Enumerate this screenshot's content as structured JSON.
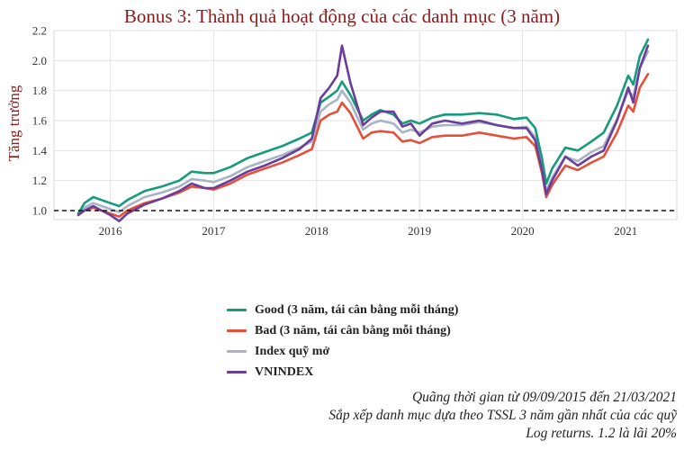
{
  "chart_data": {
    "type": "line",
    "title": "Bonus 3: Thành quả hoạt động của các danh mục (3 năm)",
    "xlabel": "",
    "ylabel": "Tăng trưởng",
    "x_ticks": [
      "2016",
      "2017",
      "2018",
      "2019",
      "2020",
      "2021"
    ],
    "x_tick_values": [
      "2016-01-01",
      "2017-01-01",
      "2018-01-01",
      "2019-01-01",
      "2020-01-01",
      "2021-01-01"
    ],
    "y_ticks": [
      "1.0",
      "1.2",
      "1.4",
      "1.6",
      "1.8",
      "2.0",
      "2.2"
    ],
    "xlim": [
      "2015-06-15",
      "2021-07-01"
    ],
    "ylim": [
      0.94,
      2.2
    ],
    "grid": true,
    "reference_line": {
      "y": 1.0,
      "style": "dashed"
    },
    "legend_position": "bottom",
    "series": [
      {
        "name": "Good (3 năm, tái cân bằng mỗi tháng)",
        "color": "#169b7c",
        "points": [
          [
            "2015-09-09",
            0.98
          ],
          [
            "2015-10-01",
            1.05
          ],
          [
            "2015-11-01",
            1.09
          ],
          [
            "2015-12-01",
            1.07
          ],
          [
            "2016-01-01",
            1.05
          ],
          [
            "2016-02-01",
            1.03
          ],
          [
            "2016-03-01",
            1.07
          ],
          [
            "2016-05-01",
            1.13
          ],
          [
            "2016-07-01",
            1.16
          ],
          [
            "2016-09-01",
            1.2
          ],
          [
            "2016-10-15",
            1.26
          ],
          [
            "2016-12-01",
            1.25
          ],
          [
            "2017-01-01",
            1.25
          ],
          [
            "2017-03-01",
            1.29
          ],
          [
            "2017-05-01",
            1.35
          ],
          [
            "2017-07-01",
            1.39
          ],
          [
            "2017-09-01",
            1.43
          ],
          [
            "2017-11-01",
            1.48
          ],
          [
            "2017-12-15",
            1.52
          ],
          [
            "2018-01-15",
            1.72
          ],
          [
            "2018-02-15",
            1.76
          ],
          [
            "2018-03-15",
            1.8
          ],
          [
            "2018-04-01",
            1.86
          ],
          [
            "2018-05-01",
            1.77
          ],
          [
            "2018-06-15",
            1.6
          ],
          [
            "2018-07-15",
            1.64
          ],
          [
            "2018-08-15",
            1.67
          ],
          [
            "2018-10-01",
            1.64
          ],
          [
            "2018-11-01",
            1.58
          ],
          [
            "2018-12-01",
            1.6
          ],
          [
            "2019-01-01",
            1.58
          ],
          [
            "2019-02-15",
            1.62
          ],
          [
            "2019-04-01",
            1.64
          ],
          [
            "2019-06-01",
            1.64
          ],
          [
            "2019-08-01",
            1.65
          ],
          [
            "2019-10-01",
            1.64
          ],
          [
            "2019-12-01",
            1.61
          ],
          [
            "2020-01-15",
            1.62
          ],
          [
            "2020-02-15",
            1.55
          ],
          [
            "2020-03-10",
            1.35
          ],
          [
            "2020-03-25",
            1.18
          ],
          [
            "2020-04-15",
            1.28
          ],
          [
            "2020-06-01",
            1.42
          ],
          [
            "2020-07-15",
            1.4
          ],
          [
            "2020-09-01",
            1.46
          ],
          [
            "2020-10-15",
            1.52
          ],
          [
            "2020-12-01",
            1.7
          ],
          [
            "2021-01-10",
            1.9
          ],
          [
            "2021-01-28",
            1.84
          ],
          [
            "2021-02-20",
            2.03
          ],
          [
            "2021-03-21",
            2.14
          ]
        ]
      },
      {
        "name": "Bad (3 năm, tái cân bằng mỗi tháng)",
        "color": "#e4503a",
        "points": [
          [
            "2015-09-09",
            0.98
          ],
          [
            "2015-10-01",
            1.0
          ],
          [
            "2015-11-01",
            1.02
          ],
          [
            "2015-12-01",
            1.0
          ],
          [
            "2016-01-01",
            0.98
          ],
          [
            "2016-02-01",
            0.96
          ],
          [
            "2016-03-01",
            1.0
          ],
          [
            "2016-05-01",
            1.05
          ],
          [
            "2016-07-01",
            1.08
          ],
          [
            "2016-09-01",
            1.12
          ],
          [
            "2016-10-15",
            1.16
          ],
          [
            "2016-12-01",
            1.15
          ],
          [
            "2017-01-01",
            1.14
          ],
          [
            "2017-03-01",
            1.18
          ],
          [
            "2017-05-01",
            1.24
          ],
          [
            "2017-07-01",
            1.28
          ],
          [
            "2017-09-01",
            1.32
          ],
          [
            "2017-11-01",
            1.37
          ],
          [
            "2017-12-15",
            1.41
          ],
          [
            "2018-01-15",
            1.6
          ],
          [
            "2018-02-15",
            1.64
          ],
          [
            "2018-03-15",
            1.66
          ],
          [
            "2018-04-01",
            1.72
          ],
          [
            "2018-05-01",
            1.65
          ],
          [
            "2018-06-15",
            1.48
          ],
          [
            "2018-07-15",
            1.52
          ],
          [
            "2018-08-15",
            1.53
          ],
          [
            "2018-10-01",
            1.52
          ],
          [
            "2018-11-01",
            1.46
          ],
          [
            "2018-12-01",
            1.47
          ],
          [
            "2019-01-01",
            1.45
          ],
          [
            "2019-02-15",
            1.49
          ],
          [
            "2019-04-01",
            1.5
          ],
          [
            "2019-06-01",
            1.5
          ],
          [
            "2019-08-01",
            1.52
          ],
          [
            "2019-10-01",
            1.5
          ],
          [
            "2019-12-01",
            1.48
          ],
          [
            "2020-01-15",
            1.49
          ],
          [
            "2020-02-15",
            1.43
          ],
          [
            "2020-03-10",
            1.25
          ],
          [
            "2020-03-25",
            1.09
          ],
          [
            "2020-04-15",
            1.17
          ],
          [
            "2020-06-01",
            1.3
          ],
          [
            "2020-07-15",
            1.27
          ],
          [
            "2020-09-01",
            1.32
          ],
          [
            "2020-10-15",
            1.36
          ],
          [
            "2020-12-01",
            1.52
          ],
          [
            "2021-01-10",
            1.7
          ],
          [
            "2021-01-28",
            1.66
          ],
          [
            "2021-02-20",
            1.82
          ],
          [
            "2021-03-21",
            1.91
          ]
        ]
      },
      {
        "name": "Index quỹ mở",
        "color": "#a8b3c7",
        "points": [
          [
            "2015-09-09",
            0.98
          ],
          [
            "2015-10-01",
            1.02
          ],
          [
            "2015-11-01",
            1.05
          ],
          [
            "2015-12-01",
            1.03
          ],
          [
            "2016-01-01",
            1.01
          ],
          [
            "2016-02-01",
            0.99
          ],
          [
            "2016-03-01",
            1.03
          ],
          [
            "2016-05-01",
            1.09
          ],
          [
            "2016-07-01",
            1.12
          ],
          [
            "2016-09-01",
            1.16
          ],
          [
            "2016-10-15",
            1.21
          ],
          [
            "2016-12-01",
            1.2
          ],
          [
            "2017-01-01",
            1.19
          ],
          [
            "2017-03-01",
            1.23
          ],
          [
            "2017-05-01",
            1.29
          ],
          [
            "2017-07-01",
            1.33
          ],
          [
            "2017-09-01",
            1.37
          ],
          [
            "2017-11-01",
            1.42
          ],
          [
            "2017-12-15",
            1.46
          ],
          [
            "2018-01-15",
            1.66
          ],
          [
            "2018-02-15",
            1.71
          ],
          [
            "2018-03-15",
            1.74
          ],
          [
            "2018-04-01",
            1.8
          ],
          [
            "2018-05-01",
            1.72
          ],
          [
            "2018-06-15",
            1.54
          ],
          [
            "2018-07-15",
            1.58
          ],
          [
            "2018-08-15",
            1.6
          ],
          [
            "2018-10-01",
            1.58
          ],
          [
            "2018-11-01",
            1.52
          ],
          [
            "2018-12-01",
            1.54
          ],
          [
            "2019-01-01",
            1.52
          ],
          [
            "2019-02-15",
            1.56
          ],
          [
            "2019-04-01",
            1.57
          ],
          [
            "2019-06-01",
            1.57
          ],
          [
            "2019-08-01",
            1.59
          ],
          [
            "2019-10-01",
            1.57
          ],
          [
            "2019-12-01",
            1.55
          ],
          [
            "2020-01-15",
            1.56
          ],
          [
            "2020-02-15",
            1.49
          ],
          [
            "2020-03-10",
            1.3
          ],
          [
            "2020-03-25",
            1.13
          ],
          [
            "2020-04-15",
            1.22
          ],
          [
            "2020-06-01",
            1.36
          ],
          [
            "2020-07-15",
            1.33
          ],
          [
            "2020-09-01",
            1.39
          ],
          [
            "2020-10-15",
            1.43
          ],
          [
            "2020-12-01",
            1.61
          ],
          [
            "2021-01-10",
            1.8
          ],
          [
            "2021-01-28",
            1.76
          ],
          [
            "2021-02-20",
            1.95
          ],
          [
            "2021-03-21",
            2.06
          ]
        ]
      },
      {
        "name": "VNINDEX",
        "color": "#6a3d9a",
        "points": [
          [
            "2015-09-09",
            0.97
          ],
          [
            "2015-10-01",
            1.0
          ],
          [
            "2015-11-01",
            1.03
          ],
          [
            "2015-12-01",
            1.0
          ],
          [
            "2016-01-01",
            0.97
          ],
          [
            "2016-02-01",
            0.93
          ],
          [
            "2016-03-01",
            0.98
          ],
          [
            "2016-05-01",
            1.04
          ],
          [
            "2016-07-01",
            1.08
          ],
          [
            "2016-09-01",
            1.13
          ],
          [
            "2016-10-15",
            1.18
          ],
          [
            "2016-12-01",
            1.15
          ],
          [
            "2017-01-01",
            1.15
          ],
          [
            "2017-03-01",
            1.2
          ],
          [
            "2017-05-01",
            1.26
          ],
          [
            "2017-07-01",
            1.3
          ],
          [
            "2017-09-01",
            1.35
          ],
          [
            "2017-11-01",
            1.41
          ],
          [
            "2017-12-15",
            1.48
          ],
          [
            "2018-01-15",
            1.75
          ],
          [
            "2018-02-15",
            1.82
          ],
          [
            "2018-03-15",
            1.9
          ],
          [
            "2018-04-01",
            2.1
          ],
          [
            "2018-05-01",
            1.85
          ],
          [
            "2018-06-15",
            1.57
          ],
          [
            "2018-07-15",
            1.62
          ],
          [
            "2018-08-15",
            1.66
          ],
          [
            "2018-10-01",
            1.66
          ],
          [
            "2018-11-01",
            1.56
          ],
          [
            "2018-12-01",
            1.58
          ],
          [
            "2019-01-01",
            1.5
          ],
          [
            "2019-02-15",
            1.58
          ],
          [
            "2019-04-01",
            1.6
          ],
          [
            "2019-06-01",
            1.58
          ],
          [
            "2019-08-01",
            1.6
          ],
          [
            "2019-10-01",
            1.57
          ],
          [
            "2019-12-01",
            1.55
          ],
          [
            "2020-01-15",
            1.55
          ],
          [
            "2020-02-15",
            1.47
          ],
          [
            "2020-03-10",
            1.27
          ],
          [
            "2020-03-25",
            1.11
          ],
          [
            "2020-04-15",
            1.2
          ],
          [
            "2020-06-01",
            1.36
          ],
          [
            "2020-07-15",
            1.3
          ],
          [
            "2020-09-01",
            1.36
          ],
          [
            "2020-10-15",
            1.4
          ],
          [
            "2020-12-01",
            1.6
          ],
          [
            "2021-01-10",
            1.82
          ],
          [
            "2021-01-28",
            1.72
          ],
          [
            "2021-02-20",
            1.95
          ],
          [
            "2021-03-21",
            2.1
          ]
        ]
      }
    ],
    "annotations": [
      "Quãng thời gian từ 09/09/2015 đến 21/03/2021",
      "Sắp xếp danh mục dựa theo TSSL 3 năm gần nhất của các quỹ",
      "Log returns. 1.2 là lãi 20%"
    ]
  }
}
